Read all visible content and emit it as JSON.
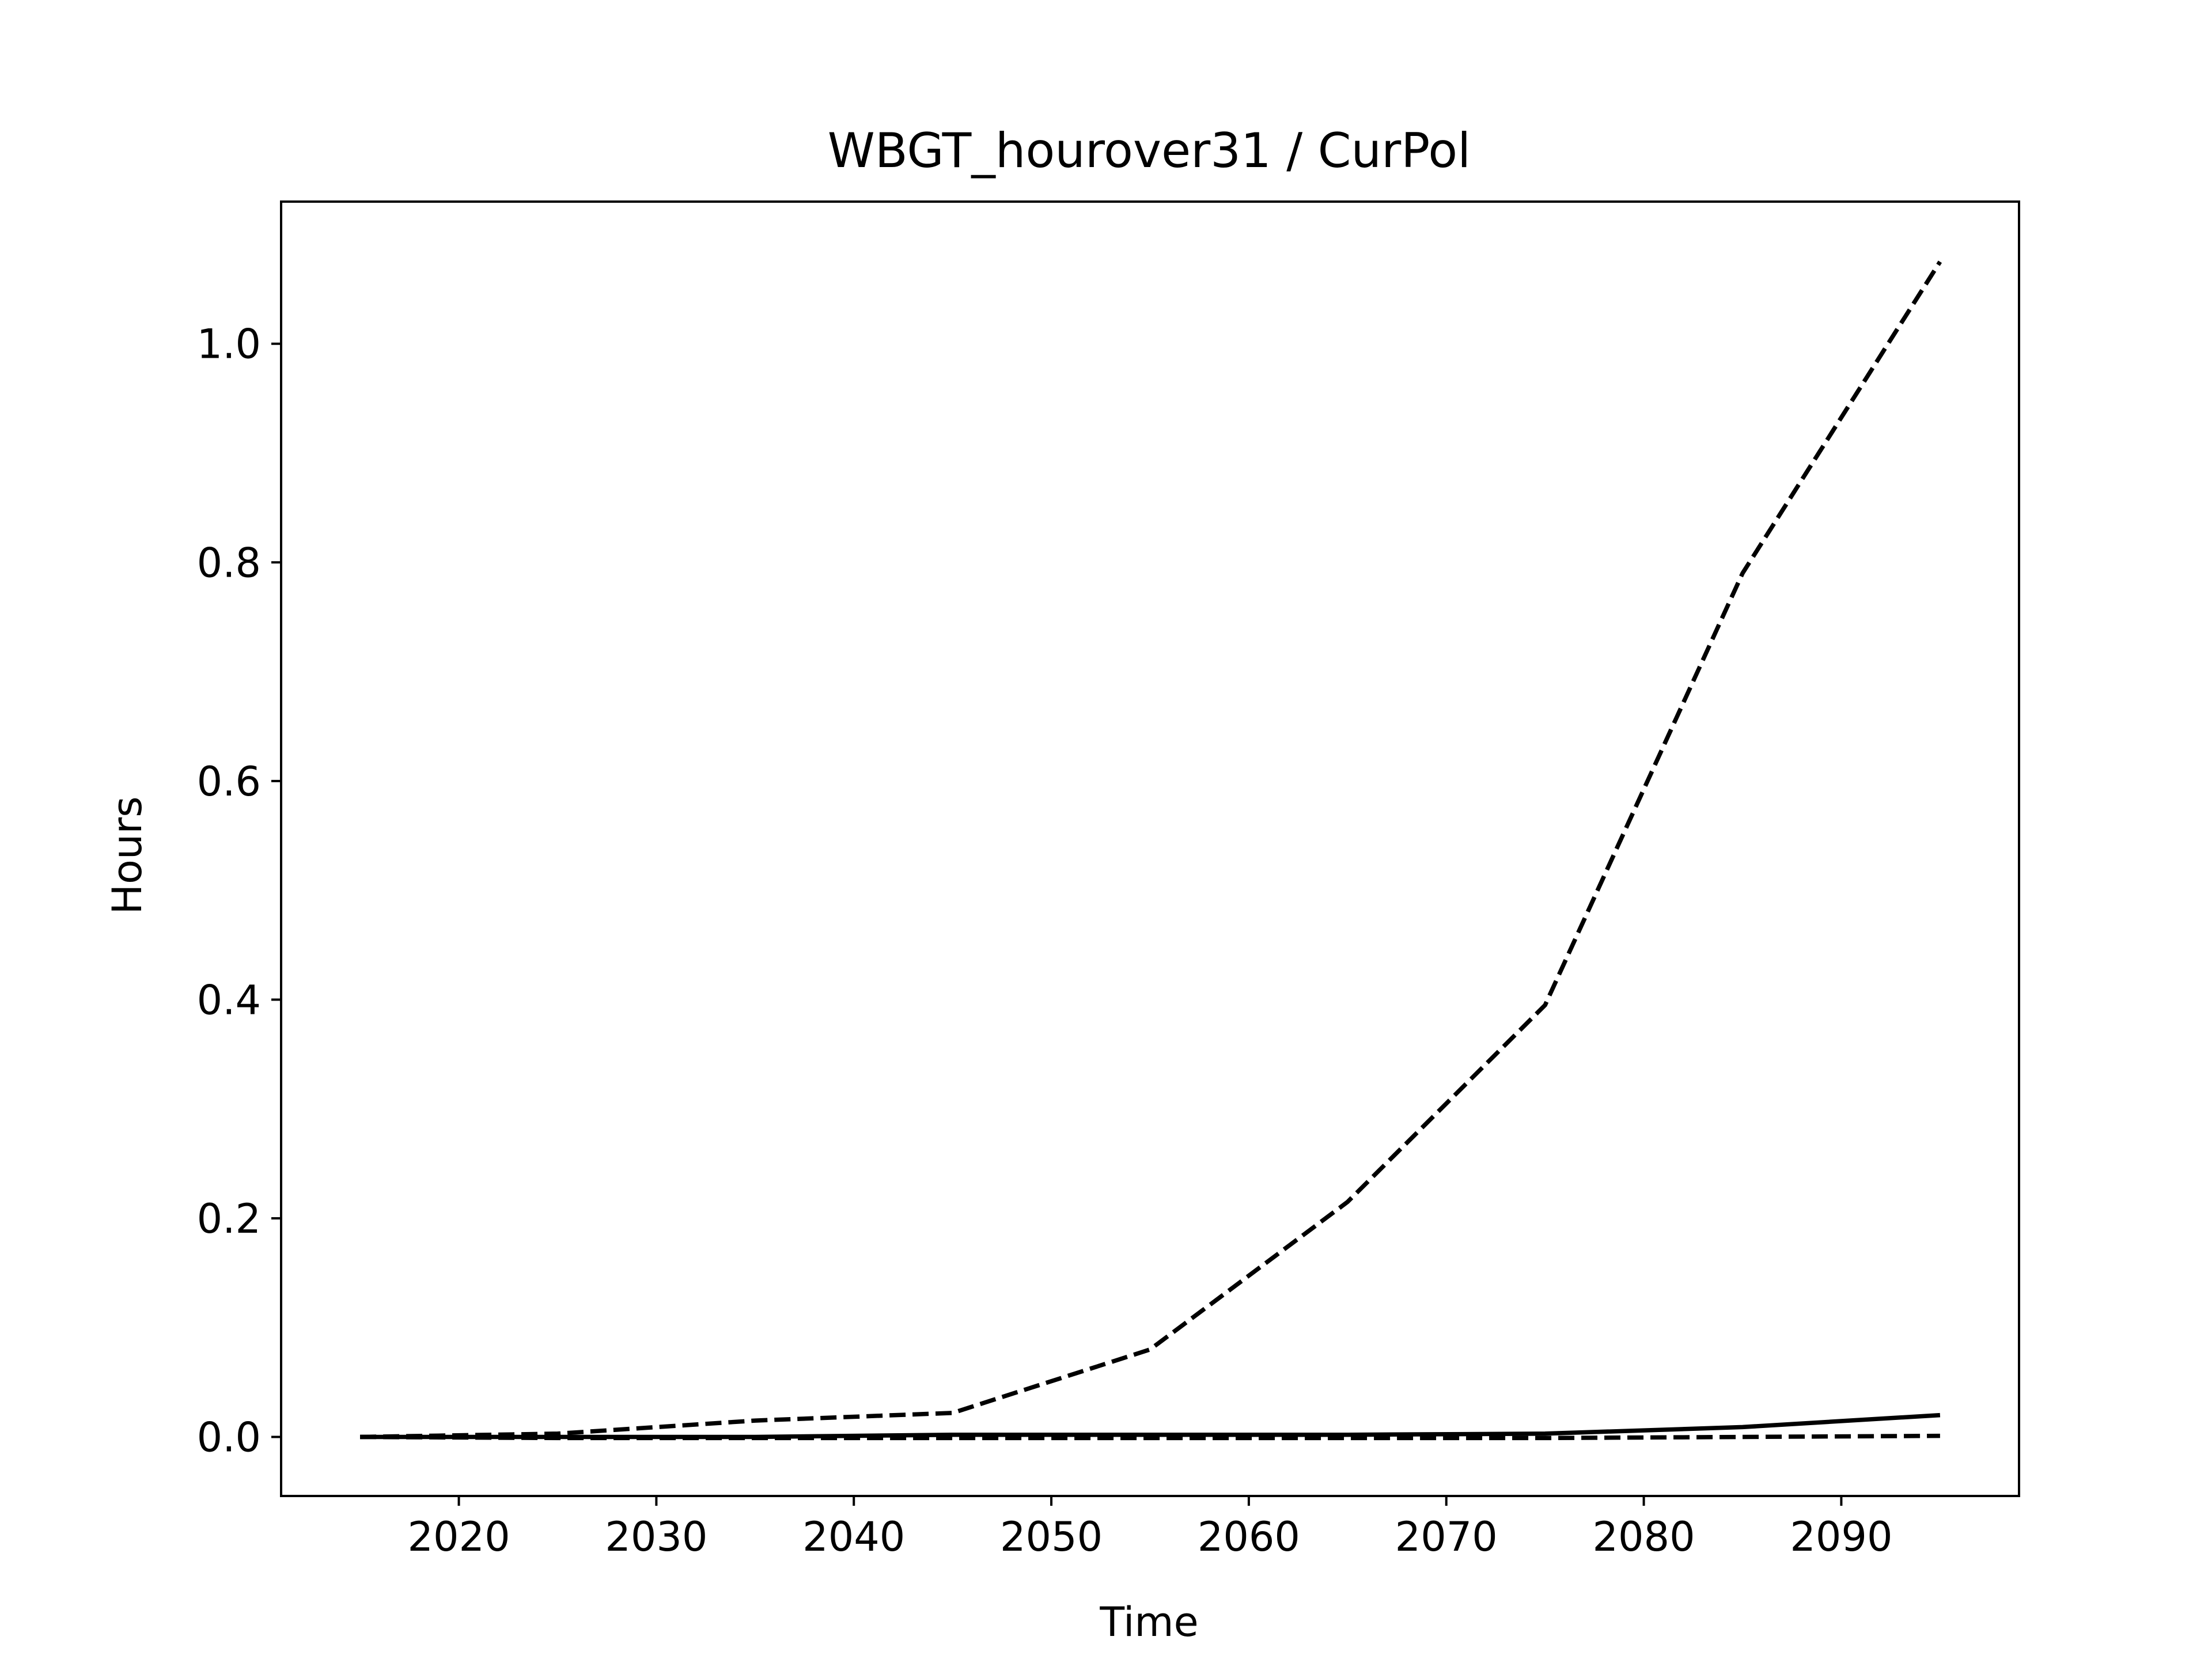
{
  "chart_data": {
    "type": "line",
    "title": "WBGT_hourover31 / CurPol",
    "xlabel": "Time",
    "ylabel": "Hours",
    "x": [
      2015,
      2025,
      2035,
      2045,
      2055,
      2065,
      2075,
      2085,
      2095
    ],
    "xlim": [
      2011,
      2099
    ],
    "ylim": [
      -0.054,
      1.13
    ],
    "xticks": [
      2020,
      2030,
      2040,
      2050,
      2060,
      2070,
      2080,
      2090
    ],
    "yticks": [
      0.0,
      0.2,
      0.4,
      0.6,
      0.8,
      1.0
    ],
    "ytick_labels": [
      "0.0",
      "0.2",
      "0.4",
      "0.6",
      "0.8",
      "1.0"
    ],
    "grid": false,
    "series": [
      {
        "style": "dashed",
        "color": "#000000",
        "values": [
          0.0,
          0.003,
          0.015,
          0.022,
          0.08,
          0.215,
          0.395,
          0.79,
          1.075
        ]
      },
      {
        "style": "solid",
        "color": "#000000",
        "values": [
          0.0,
          0.0,
          0.0,
          0.002,
          0.002,
          0.002,
          0.003,
          0.009,
          0.02
        ]
      },
      {
        "style": "dashed",
        "color": "#000000",
        "values": [
          0.0,
          -0.001,
          -0.001,
          -0.001,
          -0.001,
          -0.001,
          -0.001,
          0.0,
          0.001
        ]
      }
    ]
  }
}
